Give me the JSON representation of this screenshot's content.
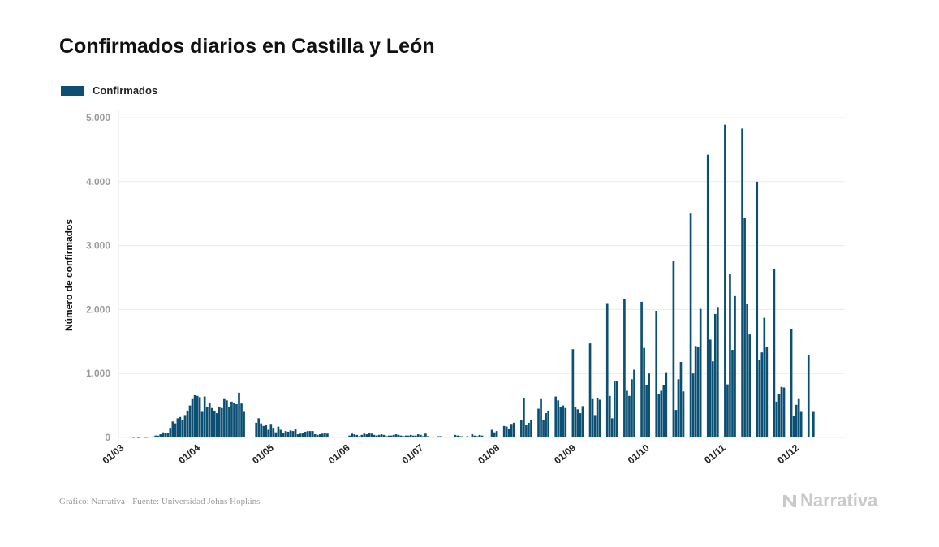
{
  "title": "Confirmados diarios en Castilla y León",
  "legend": {
    "label": "Confirmados",
    "color": "#0b4f73"
  },
  "footer": "Gráfico: Narrativa - Fuente: Universidad Johns Hopkins",
  "brand": {
    "name": "Narrativa",
    "icon": "narrativa-logo-icon"
  },
  "chart_data": {
    "type": "bar",
    "title": "Confirmados diarios en Castilla y León",
    "xlabel": "",
    "ylabel": "Número de confirmados",
    "ylim": [
      0,
      5000
    ],
    "yticks": [
      0,
      1000,
      2000,
      3000,
      4000,
      5000
    ],
    "ytick_labels": [
      "0",
      "1.000",
      "2.000",
      "3.000",
      "4.000",
      "5.000"
    ],
    "xticks": [
      "01/03",
      "01/04",
      "01/05",
      "01/06",
      "01/07",
      "01/08",
      "01/09",
      "01/10",
      "01/11",
      "01/12"
    ],
    "start_date": "01/03",
    "grid": true,
    "color": "#0b4f73",
    "series": [
      {
        "name": "Confirmados",
        "values": [
          0,
          0,
          0,
          0,
          0,
          5,
          0,
          3,
          0,
          0,
          5,
          8,
          0,
          15,
          30,
          28,
          50,
          80,
          75,
          70,
          150,
          250,
          220,
          300,
          320,
          280,
          350,
          420,
          500,
          600,
          660,
          650,
          630,
          400,
          640,
          480,
          540,
          460,
          420,
          380,
          480,
          460,
          600,
          580,
          470,
          560,
          540,
          520,
          700,
          530,
          400,
          0,
          0,
          0,
          0,
          230,
          300,
          220,
          180,
          190,
          120,
          200,
          150,
          80,
          170,
          120,
          70,
          100,
          90,
          110,
          100,
          130,
          50,
          60,
          70,
          90,
          100,
          100,
          100,
          50,
          40,
          50,
          60,
          70,
          60,
          0,
          0,
          0,
          0,
          0,
          0,
          0,
          0,
          30,
          60,
          50,
          40,
          20,
          40,
          60,
          50,
          70,
          60,
          40,
          30,
          40,
          50,
          40,
          20,
          30,
          30,
          40,
          50,
          40,
          30,
          20,
          30,
          30,
          40,
          30,
          30,
          50,
          40,
          20,
          60,
          20,
          0,
          0,
          10,
          20,
          20,
          0,
          10,
          0,
          0,
          0,
          40,
          30,
          20,
          20,
          0,
          20,
          0,
          50,
          30,
          20,
          40,
          30,
          0,
          0,
          0,
          120,
          80,
          100,
          0,
          0,
          180,
          170,
          140,
          200,
          230,
          0,
          0,
          270,
          610,
          190,
          230,
          280,
          0,
          0,
          450,
          600,
          280,
          380,
          420,
          0,
          0,
          640,
          580,
          480,
          500,
          460,
          0,
          0,
          1380,
          470,
          440,
          380,
          490,
          0,
          0,
          1470,
          600,
          350,
          610,
          590,
          0,
          0,
          2100,
          650,
          300,
          880,
          880,
          0,
          0,
          2160,
          730,
          650,
          910,
          1060,
          0,
          0,
          2120,
          1400,
          820,
          1000,
          0,
          0,
          1980,
          680,
          730,
          820,
          1020,
          0,
          0,
          2760,
          430,
          910,
          1180,
          720,
          0,
          0,
          3500,
          1000,
          1430,
          1420,
          2010,
          0,
          0,
          4420,
          1530,
          1190,
          1930,
          2040,
          0,
          0,
          4890,
          830,
          2560,
          1370,
          2210,
          0,
          0,
          4830,
          3430,
          2090,
          1610,
          0,
          0,
          4000,
          1210,
          1330,
          1870,
          1420,
          0,
          0,
          2640,
          560,
          680,
          790,
          780,
          0,
          0,
          1690,
          340,
          510,
          600,
          400,
          0,
          0,
          1290,
          0,
          400
        ]
      }
    ]
  }
}
